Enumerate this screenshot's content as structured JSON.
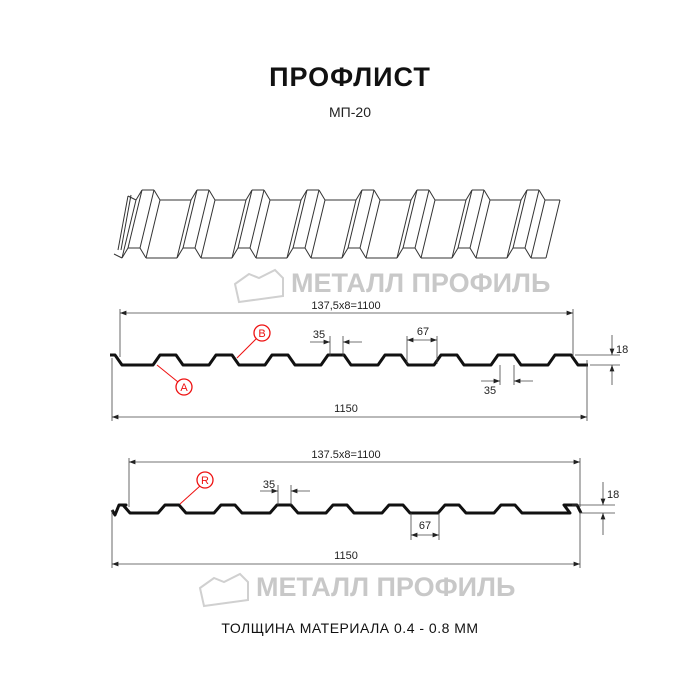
{
  "title": "ПРОФЛИСТ",
  "subtitle": "МП-20",
  "watermark": "МЕТАЛЛ ПРОФИЛЬ",
  "profile_a": {
    "pitch_dim": "137,5x8=1100",
    "width_dim": "1150",
    "rib_top_dim": "35",
    "rib_bottom_dim": "35",
    "trough_dim": "67",
    "height_dim": "18",
    "label_a": "A",
    "label_b": "B"
  },
  "profile_r": {
    "pitch_dim": "137.5x8=1100",
    "width_dim": "1150",
    "rib_top_dim": "35",
    "trough_dim": "67",
    "height_dim": "18",
    "label_r": "R"
  },
  "footer": "ТОЛЩИНА МАТЕРИАЛА 0.4 - 0.8 ММ",
  "colors": {
    "profile": "#111111",
    "labels": "#ee1111",
    "watermark": "#c8c8c8"
  }
}
